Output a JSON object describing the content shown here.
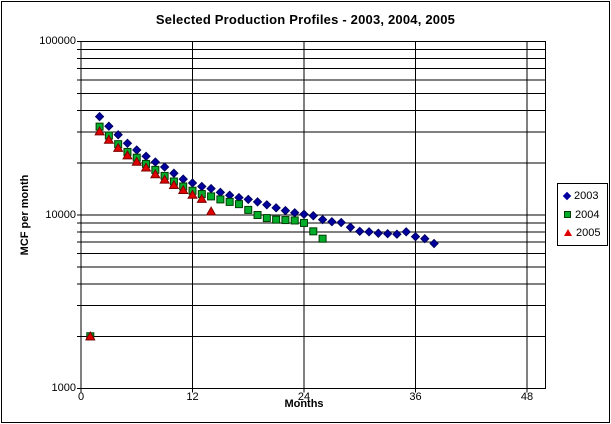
{
  "chart_data": {
    "type": "scatter",
    "title": "Selected Production Profiles - 2003, 2004, 2005",
    "xlabel": "Months",
    "ylabel": "MCF per month",
    "x_ticks": [
      0,
      12,
      24,
      36,
      48
    ],
    "x_tick_labels": [
      "0",
      "12",
      "24",
      "36",
      "48"
    ],
    "xlim": [
      0,
      50
    ],
    "y_scale": "log",
    "ylim": [
      1000,
      100000
    ],
    "y_ticks": [
      1000,
      10000,
      100000
    ],
    "y_tick_labels": [
      "1000",
      "10000",
      "100000"
    ],
    "grid": {
      "horizontal": "log-minor-and-major",
      "vertical_at": [
        12,
        24,
        36,
        48
      ],
      "color": "#000000"
    },
    "legend_position": "right",
    "plot_bg": "#FFFFFF",
    "series": [
      {
        "name": "2003",
        "marker": "diamond",
        "color": "#0000A0",
        "stroke": "#000060",
        "points": [
          [
            2,
            36900
          ],
          [
            3,
            32500
          ],
          [
            4,
            29000
          ],
          [
            5,
            25900
          ],
          [
            6,
            23700
          ],
          [
            7,
            21800
          ],
          [
            8,
            20200
          ],
          [
            9,
            18900
          ],
          [
            10,
            17400
          ],
          [
            11,
            16100
          ],
          [
            12,
            15300
          ],
          [
            13,
            14600
          ],
          [
            14,
            14200
          ],
          [
            15,
            13500
          ],
          [
            16,
            13000
          ],
          [
            17,
            12600
          ],
          [
            18,
            12300
          ],
          [
            19,
            11900
          ],
          [
            20,
            11450
          ],
          [
            21,
            11000
          ],
          [
            22,
            10600
          ],
          [
            23,
            10300
          ],
          [
            24,
            10100
          ],
          [
            25,
            9900
          ],
          [
            26,
            9400
          ],
          [
            27,
            9150
          ],
          [
            28,
            9050
          ],
          [
            29,
            8500
          ],
          [
            30,
            8050
          ],
          [
            31,
            8000
          ],
          [
            32,
            7850
          ],
          [
            33,
            7800
          ],
          [
            34,
            7750
          ],
          [
            35,
            8000
          ],
          [
            36,
            7500
          ],
          [
            37,
            7300
          ],
          [
            38,
            6850
          ]
        ]
      },
      {
        "name": "2004",
        "marker": "square",
        "color": "#00AD2B",
        "stroke": "#003C00",
        "points": [
          [
            1,
            2000
          ],
          [
            2,
            32300
          ],
          [
            3,
            28700
          ],
          [
            4,
            25600
          ],
          [
            5,
            23100
          ],
          [
            6,
            21400
          ],
          [
            7,
            19700
          ],
          [
            8,
            18200
          ],
          [
            9,
            16800
          ],
          [
            10,
            15600
          ],
          [
            11,
            14600
          ],
          [
            12,
            13800
          ],
          [
            13,
            13200
          ],
          [
            14,
            12800
          ],
          [
            15,
            12300
          ],
          [
            16,
            11900
          ],
          [
            17,
            11550
          ],
          [
            18,
            10700
          ],
          [
            19,
            10000
          ],
          [
            20,
            9600
          ],
          [
            21,
            9400
          ],
          [
            22,
            9350
          ],
          [
            23,
            9300
          ],
          [
            24,
            9000
          ],
          [
            25,
            8050
          ],
          [
            26,
            7300
          ]
        ]
      },
      {
        "name": "2005",
        "marker": "triangle",
        "color": "#E00000",
        "stroke": "#7C0000",
        "points": [
          [
            1,
            2000
          ],
          [
            2,
            30400
          ],
          [
            3,
            27200
          ],
          [
            4,
            24400
          ],
          [
            5,
            22100
          ],
          [
            6,
            20300
          ],
          [
            7,
            18800
          ],
          [
            8,
            17200
          ],
          [
            9,
            16000
          ],
          [
            10,
            14900
          ],
          [
            11,
            13950
          ],
          [
            12,
            13100
          ],
          [
            13,
            12400
          ],
          [
            14,
            10500
          ]
        ]
      }
    ]
  }
}
